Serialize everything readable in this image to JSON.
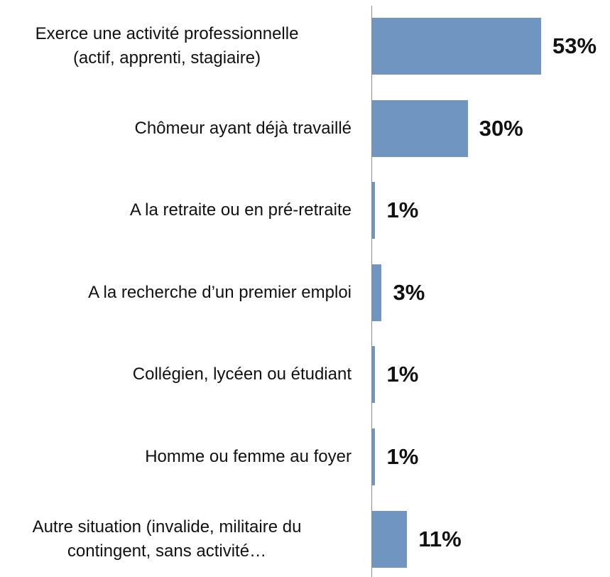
{
  "chart_data": {
    "type": "bar",
    "orientation": "horizontal",
    "categories": [
      "Exerce une activité professionnelle\n(actif, apprenti, stagiaire)",
      "Chômeur ayant déjà  travaillé",
      "A  la retraite ou en pré-retraite",
      "A  la recherche d’un premier emploi",
      "Collégien, lycéen ou étudiant",
      "Homme ou femme au foyer",
      "Autre situation (invalide, militaire du\ncontingent, sans activité…"
    ],
    "values": [
      53,
      30,
      1,
      3,
      1,
      1,
      11
    ],
    "value_labels": [
      "53%",
      "30%",
      "1%",
      "3%",
      "1%",
      "1%",
      "11%"
    ],
    "color": "#7195c1"
  }
}
